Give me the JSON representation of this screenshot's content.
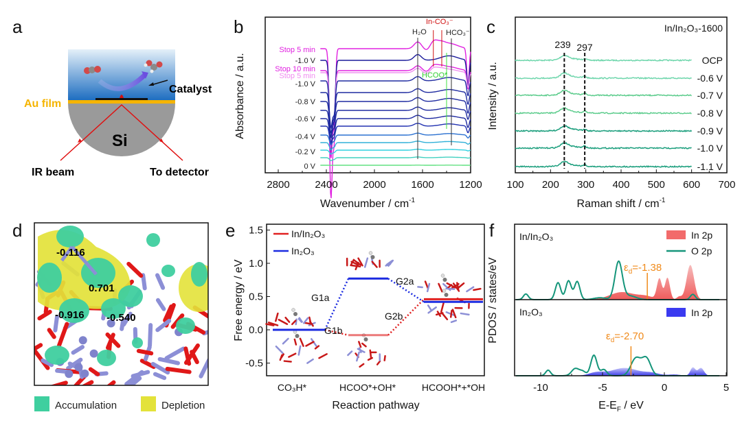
{
  "figure": {
    "panel_letters": [
      "a",
      "b",
      "c",
      "d",
      "e",
      "f"
    ]
  },
  "panel_a": {
    "au_film": "Au film",
    "catalyst": "Catalyst",
    "si": "Si",
    "ir_beam": "IR beam",
    "to_detector": "To detector",
    "colors": {
      "au": "#f5b400",
      "beam": "#e01010",
      "si": "#9a9a9a",
      "water_top": "#dbeaf6",
      "water_bottom": "#1e6fc0"
    }
  },
  "panel_d": {
    "charges": [
      "-0.116",
      "0.701",
      "-0.916",
      "-0.540"
    ],
    "legend": {
      "accumulation": "Accumulation",
      "depletion": "Depletion"
    },
    "colors": {
      "accumulation": "#3fcf9f",
      "depletion": "#e3e23a",
      "in_atom": "#8c8fd6",
      "o_atom": "#e01818"
    }
  },
  "chart_data": [
    {
      "panel": "b",
      "type": "line",
      "xlabel_main": "Wavenumber / cm",
      "xlabel_sup": "-1",
      "ylabel": "Absorbance / a.u.",
      "xlim": [
        2900,
        1200
      ],
      "xticks": [
        "2800",
        "2400",
        "2000",
        "1600",
        "1200"
      ],
      "series_labels": [
        {
          "text": "Stop 5 min",
          "color": "#e020e0"
        },
        {
          "text": "-1.0 V",
          "color": "#222222"
        },
        {
          "text": "Stop 10 min",
          "color": "#e020e0"
        },
        {
          "text": "Stop 5 min",
          "color": "#f08cf0"
        },
        {
          "text": "-1.0 V",
          "color": "#222222"
        },
        {
          "text": "-0.8 V",
          "color": "#222222"
        },
        {
          "text": "-0.6 V",
          "color": "#222222"
        },
        {
          "text": "-0.4 V",
          "color": "#222222"
        },
        {
          "text": "-0.2 V",
          "color": "#222222"
        },
        {
          "text": "0 V",
          "color": "#222222"
        }
      ],
      "annotations": {
        "h2o": {
          "text": "H₂O",
          "x": 1640
        },
        "in_co3": {
          "text": "In-CO₃⁻",
          "x": [
            1510,
            1440
          ]
        },
        "hco3": {
          "text": "HCO₃⁻",
          "x": 1360
        },
        "hcoo": {
          "text": "HCOO*",
          "x": 1400
        }
      }
    },
    {
      "panel": "c",
      "type": "line",
      "title": "In/In₂O₃-1600",
      "xlabel_main": "Raman shift / cm",
      "xlabel_sup": "-1",
      "ylabel": "Intensity / a.u.",
      "xlim": [
        100,
        700
      ],
      "xticks": [
        "100",
        "200",
        "300",
        "400",
        "500",
        "600",
        "700"
      ],
      "series_labels": [
        "OCP",
        "-0.6 V",
        "-0.7 V",
        "-0.8 V",
        "-0.9 V",
        "-1.0 V",
        "-1.1 V"
      ],
      "peaks": [
        239,
        297
      ],
      "peak_labels": [
        "239",
        "297"
      ]
    },
    {
      "panel": "e",
      "type": "line",
      "ylabel": "Free energy / eV",
      "xlabel": "Reaction pathway",
      "ylim": [
        -0.7,
        1.6
      ],
      "yticks": [
        "1.5",
        "1.0",
        "0.5",
        "0.0",
        "-0.5"
      ],
      "categories": [
        "CO₃H*",
        "HCOO*+OH*",
        "HCOOH*+*OH"
      ],
      "series": [
        {
          "name": "In/In₂O₃",
          "color": "#e02020",
          "values": [
            0.0,
            -0.08,
            0.46
          ]
        },
        {
          "name": "In₂O₃",
          "color": "#1a2ae0",
          "values": [
            0.0,
            0.77,
            0.42
          ]
        }
      ],
      "step_labels": [
        "G1a",
        "G1b",
        "G2a",
        "G2b"
      ]
    },
    {
      "panel": "f",
      "type": "area",
      "ylabel": "PDOS / states/eV",
      "xlabel_main": "E-E",
      "xlabel_sub": "F",
      "xlabel_unit": " / eV",
      "xlim": [
        -12,
        5
      ],
      "xticks": [
        "-10",
        "-5",
        "0",
        "5"
      ],
      "subplots": [
        {
          "title": "In/In₂O₃",
          "ed_symbol": "ε",
          "ed_sub": "d",
          "ed_text": "=-1.38",
          "ed_value": -1.38,
          "series": [
            {
              "name": "In 2p",
              "color": "#f26b6b",
              "peaks": [
                [
                  -3.4,
                  0.2,
                  1.0
                ],
                [
                  -1.5,
                  0.08,
                  0.6
                ],
                [
                  -0.4,
                  0.55,
                  0.2
                ],
                [
                  0.25,
                  0.58,
                  0.2
                ],
                [
                  1.2,
                  0.08,
                  0.2
                ],
                [
                  2.1,
                  0.92,
                  0.3
                ]
              ]
            },
            {
              "name": "O 2p",
              "color": "#14957a",
              "peaks": [
                [
                  -11.2,
                  0.15,
                  0.2
                ],
                [
                  -8.6,
                  0.45,
                  0.22
                ],
                [
                  -7.75,
                  0.5,
                  0.22
                ],
                [
                  -7.05,
                  0.48,
                  0.22
                ],
                [
                  -5.2,
                  0.05,
                  0.5
                ],
                [
                  -3.7,
                  1.0,
                  0.3
                ],
                [
                  -2.8,
                  0.1,
                  0.5
                ],
                [
                  2.3,
                  0.14,
                  0.2
                ]
              ]
            }
          ]
        },
        {
          "title": "In₂O₃",
          "ed_symbol": "ε",
          "ed_sub": "d",
          "ed_text": "=-2.70",
          "ed_value": -2.7,
          "series": [
            {
              "name": "In 2p",
              "color": "#3a3af0",
              "peaks": [
                [
                  -5.5,
                  0.15,
                  0.6
                ],
                [
                  -3.2,
                  0.38,
                  1.1
                ],
                [
                  -1.0,
                  0.12,
                  0.6
                ],
                [
                  0.8,
                  0.06,
                  0.5
                ],
                [
                  2.3,
                  0.4,
                  0.2
                ],
                [
                  2.95,
                  0.38,
                  0.25
                ]
              ]
            },
            {
              "name": "O 2p",
              "color": "#14957a",
              "peaks": [
                [
                  -9.4,
                  0.27,
                  0.2
                ],
                [
                  -7.2,
                  0.35,
                  0.3
                ],
                [
                  -6.6,
                  0.2,
                  0.25
                ],
                [
                  -5.7,
                  1.0,
                  0.25
                ],
                [
                  -4.9,
                  0.3,
                  0.25
                ],
                [
                  -2.3,
                  0.85,
                  0.4
                ],
                [
                  -1.45,
                  0.82,
                  0.35
                ]
              ]
            }
          ]
        }
      ]
    }
  ]
}
